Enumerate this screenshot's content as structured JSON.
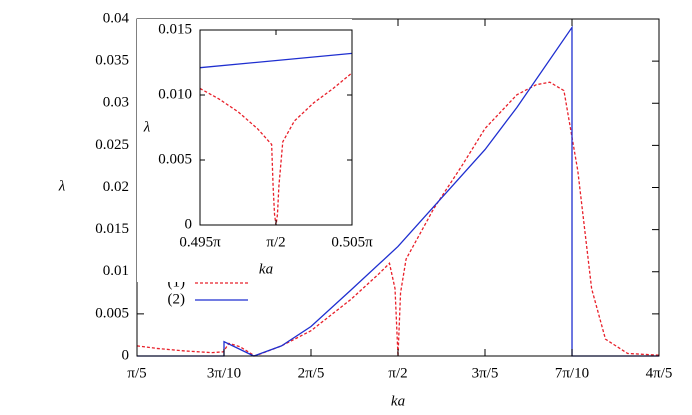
{
  "chart_data": [
    {
      "type": "line",
      "xlabel": "ka",
      "ylabel": "λ",
      "xlim": [
        0.6283,
        2.5133
      ],
      "ylim": [
        0,
        0.04
      ],
      "xticks": [
        {
          "value": 0.6283,
          "label": "π/5"
        },
        {
          "value": 0.9425,
          "label": "3π/10"
        },
        {
          "value": 1.2566,
          "label": "2π/5"
        },
        {
          "value": 1.5708,
          "label": "π/2"
        },
        {
          "value": 1.885,
          "label": "3π/5"
        },
        {
          "value": 2.1991,
          "label": "7π/10"
        },
        {
          "value": 2.5133,
          "label": "4π/5"
        }
      ],
      "yticks": [
        0,
        0.005,
        0.01,
        0.015,
        0.02,
        0.025,
        0.03,
        0.035,
        0.04
      ],
      "legend": "center left",
      "series": [
        {
          "name": "(1)",
          "color": "#e8202a",
          "linestyle": "dashed",
          "x": [
            0.6283,
            0.7,
            0.8,
            0.9,
            0.94,
            0.96,
            1.0,
            1.054,
            1.15,
            1.2566,
            1.4,
            1.5,
            1.54,
            1.56,
            1.5708,
            1.58,
            1.6,
            1.7,
            1.8,
            1.885,
            2.0,
            2.07,
            2.119,
            2.17,
            2.22,
            2.27,
            2.32,
            2.4,
            2.5133
          ],
          "values": [
            0.0012,
            0.0009,
            0.0006,
            0.0004,
            0.0005,
            0.0015,
            0.0011,
            0,
            0.0012,
            0.003,
            0.0067,
            0.0097,
            0.011,
            0.008,
            0,
            0.0075,
            0.0115,
            0.0175,
            0.0225,
            0.027,
            0.031,
            0.0322,
            0.0325,
            0.0315,
            0.022,
            0.008,
            0.002,
            0.0003,
            0.0001
          ]
        },
        {
          "name": "(2)",
          "color": "#1f2fd0",
          "linestyle": "solid",
          "x": [
            0.6283,
            0.9424,
            0.9425,
            1.05,
            1.15,
            1.2566,
            1.4,
            1.5708,
            1.885,
            2.0,
            2.1991,
            2.1992,
            2.5133
          ],
          "values": [
            0,
            0,
            0.0017,
            0,
            0.0012,
            0.0035,
            0.0078,
            0.013,
            0.0245,
            0.0295,
            0.039,
            0,
            0
          ]
        }
      ]
    },
    {
      "type": "line",
      "xlabel": "ka",
      "ylabel": "λ",
      "xlim": [
        1.5551,
        1.5865
      ],
      "ylim": [
        0,
        0.015
      ],
      "xticks": [
        {
          "value": 1.5551,
          "label": "0.495π"
        },
        {
          "value": 1.5708,
          "label": "π/2"
        },
        {
          "value": 1.5865,
          "label": "0.505π"
        }
      ],
      "yticks": [
        0,
        0.005,
        {
          "value": 0.01,
          "label": "0.010"
        },
        0.015
      ],
      "series": [
        {
          "color": "#e8202a",
          "linestyle": "dashed",
          "x": [
            1.5551,
            1.559,
            1.563,
            1.567,
            1.5694,
            1.5699,
            1.5702,
            1.5705,
            1.5708,
            1.5711,
            1.5714,
            1.5722,
            1.5746,
            1.5786,
            1.5826,
            1.5865
          ],
          "values": [
            0.0105,
            0.0097,
            0.0087,
            0.0074,
            0.0064,
            0.0062,
            0.003,
            0.0008,
            0,
            0.0008,
            0.003,
            0.0064,
            0.008,
            0.0094,
            0.0105,
            0.0117
          ]
        },
        {
          "color": "#1f2fd0",
          "linestyle": "solid",
          "x": [
            1.5551,
            1.5865
          ],
          "values": [
            0.0121,
            0.0132
          ]
        }
      ]
    }
  ]
}
